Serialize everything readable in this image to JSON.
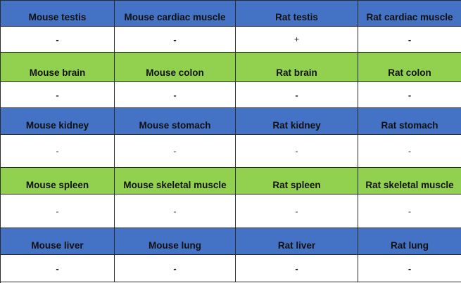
{
  "rows": [
    {
      "type": "header",
      "color": "#4472c4",
      "cells": [
        "Mouse testis",
        "Mouse cardiac muscle",
        "Rat testis",
        "Rat cardiac muscle"
      ]
    },
    {
      "type": "value",
      "style": "bold",
      "cells": [
        "-",
        "-",
        "+",
        "-"
      ]
    },
    {
      "type": "header",
      "color": "#92d050",
      "cells": [
        "Mouse brain",
        "Mouse colon",
        "Rat brain",
        "Rat colon"
      ]
    },
    {
      "type": "value",
      "style": "bold",
      "cells": [
        "-",
        "-",
        "-",
        "-"
      ]
    },
    {
      "type": "header",
      "color": "#4472c4",
      "cells": [
        "Mouse kidney",
        "Mouse stomach",
        "Rat kidney",
        "Rat stomach"
      ]
    },
    {
      "type": "value",
      "style": "light",
      "cells": [
        "-",
        "-",
        "-",
        "-"
      ]
    },
    {
      "type": "header",
      "color": "#92d050",
      "cells": [
        "Mouse spleen",
        "Mouse skeletal muscle",
        "Rat spleen",
        "Rat skeletal muscle"
      ]
    },
    {
      "type": "value",
      "style": "light",
      "cells": [
        "-",
        "-",
        "-",
        "-"
      ]
    },
    {
      "type": "header",
      "color": "#4472c4",
      "cells": [
        "Mouse liver",
        "Mouse lung",
        "Rat liver",
        "Rat lung"
      ]
    },
    {
      "type": "value",
      "style": "bold",
      "cells": [
        "-",
        "-",
        "-",
        "-"
      ]
    }
  ]
}
